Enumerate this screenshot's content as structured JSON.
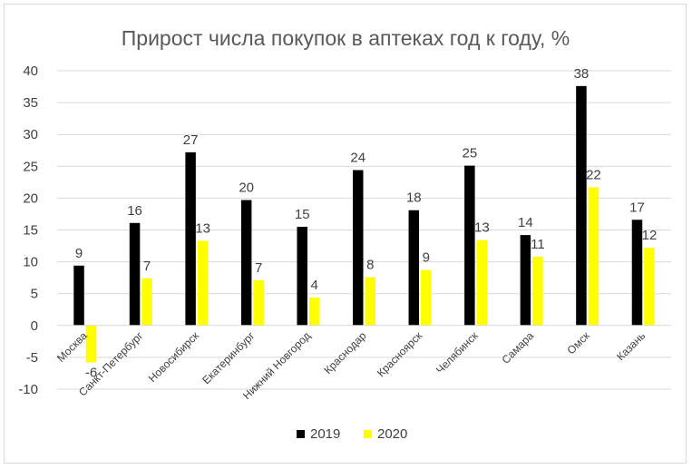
{
  "chart_data": {
    "type": "bar",
    "title": "Прирост числа покупок в аптеках год к году, %",
    "categories": [
      "Москва",
      "Санкт-Петербург",
      "Новосибирск",
      "Екатеринбург",
      "Нижний Новгород",
      "Краснодар",
      "Красноярск",
      "Челябинск",
      "Самара",
      "Омск",
      "Казань"
    ],
    "series": [
      {
        "name": "2019",
        "color": "#000000",
        "values": [
          9.4,
          16.1,
          27.2,
          19.7,
          15.5,
          24.4,
          18.1,
          25.1,
          14.2,
          37.6,
          16.6
        ],
        "labels": [
          "9",
          "16",
          "27",
          "20",
          "15",
          "24",
          "18",
          "25",
          "14",
          "38",
          "17"
        ]
      },
      {
        "name": "2020",
        "color": "#ffff00",
        "values": [
          -5.8,
          7.4,
          13.3,
          7.1,
          4.4,
          7.6,
          8.7,
          13.4,
          10.8,
          21.7,
          12.2
        ],
        "labels": [
          "-6",
          "7",
          "13",
          "7",
          "4",
          "8",
          "9",
          "13",
          "11",
          "22",
          "12"
        ]
      }
    ],
    "ylim": [
      -10,
      40
    ],
    "yticks": [
      "-10",
      "-5",
      "0",
      "5",
      "10",
      "15",
      "20",
      "25",
      "30",
      "35",
      "40"
    ],
    "grid": true,
    "legend_position": "bottom"
  }
}
